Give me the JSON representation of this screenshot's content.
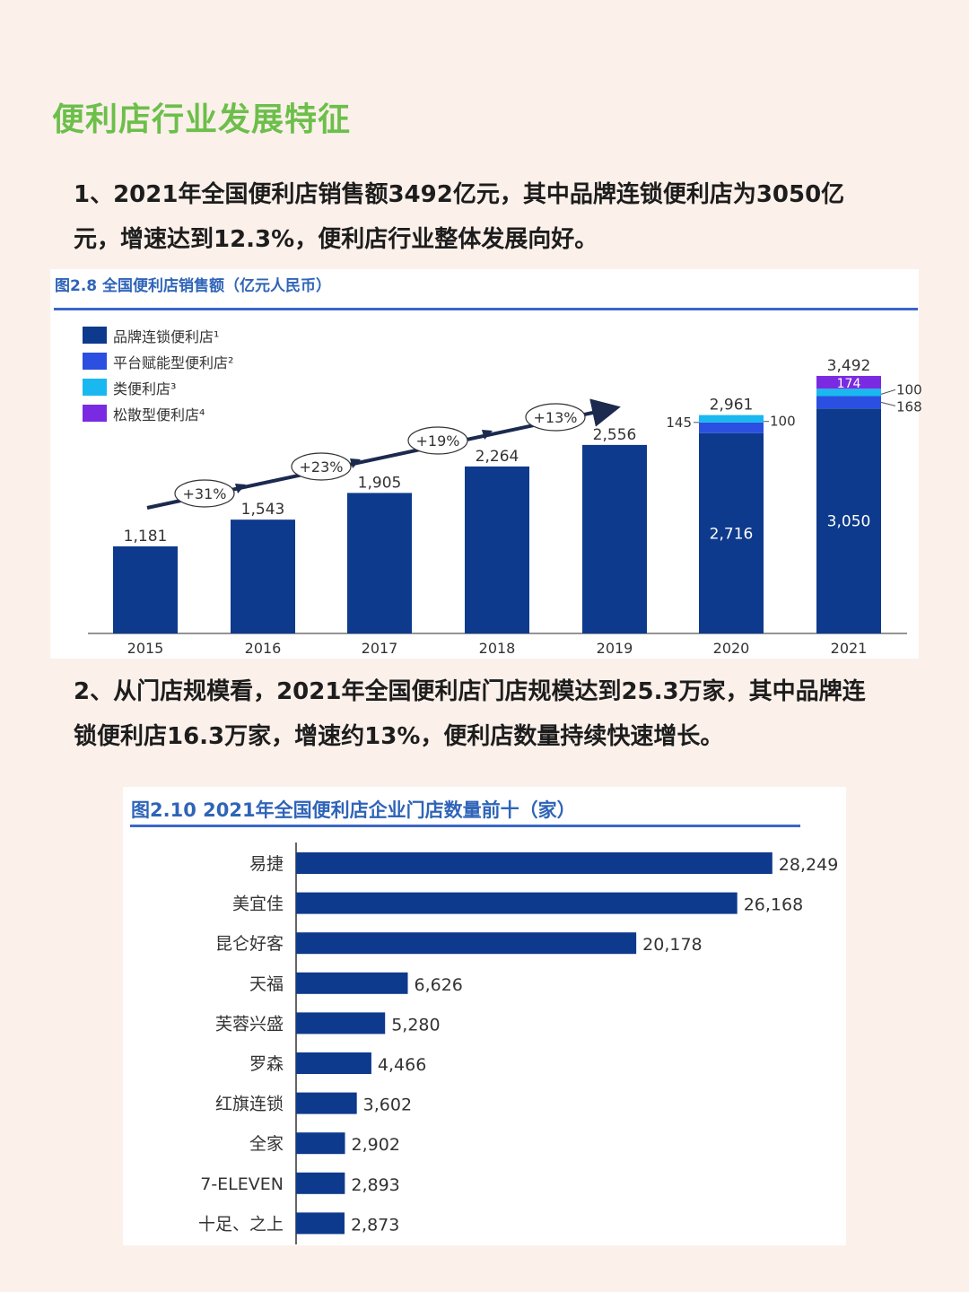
{
  "page": {
    "title": "便利店行业发展特征",
    "para1": "1、2021年全国便利店销售额3492亿元，其中品牌连锁便利店为3050亿元，增速达到12.3%，便利店行业整体发展向好。",
    "para2": "2、从门店规模看，2021年全国便利店门店规模达到25.3万家，其中品牌连锁便利店16.3万家，增速约13%，便利店数量持续快速增长。"
  },
  "colors": {
    "title_green": "#6cbf4a",
    "brand_chain": "#0d3a8c",
    "platform": "#2b4fe0",
    "class_store": "#1ab8f0",
    "scattered": "#7a2be2",
    "bar2": "#0d3a8c"
  },
  "chart_data": [
    {
      "type": "bar",
      "title": "图2.8 全国便利店销售额（亿元人民币）",
      "categories": [
        "2015",
        "2016",
        "2017",
        "2018",
        "2019",
        "2020",
        "2021"
      ],
      "series": [
        {
          "name": "品牌连锁便利店¹",
          "values": [
            1181,
            1543,
            1905,
            2264,
            2556,
            2716,
            3050
          ]
        },
        {
          "name": "平台赋能型便利店²",
          "values": [
            null,
            null,
            null,
            null,
            null,
            145,
            168
          ]
        },
        {
          "name": "类便利店³",
          "values": [
            null,
            null,
            null,
            null,
            null,
            100,
            100
          ]
        },
        {
          "name": "松散型便利店⁴",
          "values": [
            null,
            null,
            null,
            null,
            null,
            null,
            174
          ]
        }
      ],
      "totals": [
        1181,
        1543,
        1905,
        2264,
        2556,
        2961,
        3492
      ],
      "growth_labels": [
        "+31%",
        "+23%",
        "+19%",
        "+13%"
      ],
      "inner_labels": [
        "",
        "",
        "",
        "",
        "",
        "2,716",
        "3,050"
      ],
      "total_labels": [
        "1,181",
        "1,543",
        "1,905",
        "2,264",
        "2,556",
        "2,961",
        "3,492"
      ],
      "segment_labels_2020": {
        "platform": "145",
        "class_store": "100"
      },
      "segment_labels_2021": {
        "scattered": "174",
        "class_store": "100",
        "platform": "168"
      },
      "stacked": true,
      "legend": "top-left",
      "grid": false,
      "ylim": [
        0,
        3600
      ]
    },
    {
      "type": "bar",
      "orientation": "horizontal",
      "title": "图2.10 2021年全国便利店企业门店数量前十（家）",
      "categories": [
        "易捷",
        "美宜佳",
        "昆仑好客",
        "天福",
        "芙蓉兴盛",
        "罗森",
        "红旗连锁",
        "全家",
        "7-ELEVEN",
        "十足、之上"
      ],
      "values": [
        28249,
        26168,
        20178,
        6626,
        5280,
        4466,
        3602,
        2902,
        2893,
        2873
      ],
      "value_labels": [
        "28,249",
        "26,168",
        "20,178",
        "6,626",
        "5,280",
        "4,466",
        "3,602",
        "2,902",
        "2,893",
        "2,873"
      ],
      "grid": false,
      "xlim": [
        0,
        30000
      ]
    }
  ]
}
